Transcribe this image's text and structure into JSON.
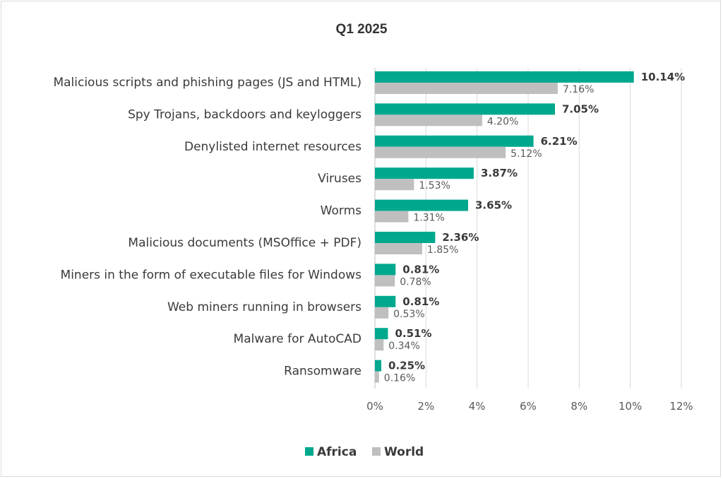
{
  "chart_data": {
    "type": "bar",
    "orientation": "horizontal",
    "title": "Q1 2025",
    "categories": [
      "Malicious scripts and phishing pages (JS and HTML)",
      "Spy Trojans, backdoors and keyloggers",
      "Denylisted internet resources",
      "Viruses",
      "Worms",
      "Malicious documents (MSOffice + PDF)",
      "Miners in the form of executable files for Windows",
      "Web miners running in browsers",
      "Malware for AutoCAD",
      "Ransomware"
    ],
    "series": [
      {
        "name": "Africa",
        "color": "#00a88e",
        "values": [
          10.14,
          7.05,
          6.21,
          3.87,
          3.65,
          2.36,
          0.81,
          0.81,
          0.51,
          0.25
        ],
        "labels": [
          "10.14%",
          "7.05%",
          "6.21%",
          "3.87%",
          "3.65%",
          "2.36%",
          "0.81%",
          "0.81%",
          "0.51%",
          "0.25%"
        ]
      },
      {
        "name": "World",
        "color": "#bfbfbf",
        "values": [
          7.16,
          4.2,
          5.12,
          1.53,
          1.31,
          1.85,
          0.78,
          0.53,
          0.34,
          0.16
        ],
        "labels": [
          "7.16%",
          "4.20%",
          "5.12%",
          "1.53%",
          "1.31%",
          "1.85%",
          "0.78%",
          "0.53%",
          "0.34%",
          "0.16%"
        ]
      }
    ],
    "x_ticks": [
      "0%",
      "2%",
      "4%",
      "6%",
      "8%",
      "10%",
      "12%"
    ],
    "xlim": [
      0,
      12
    ],
    "grid": true,
    "legend_position": "bottom"
  }
}
